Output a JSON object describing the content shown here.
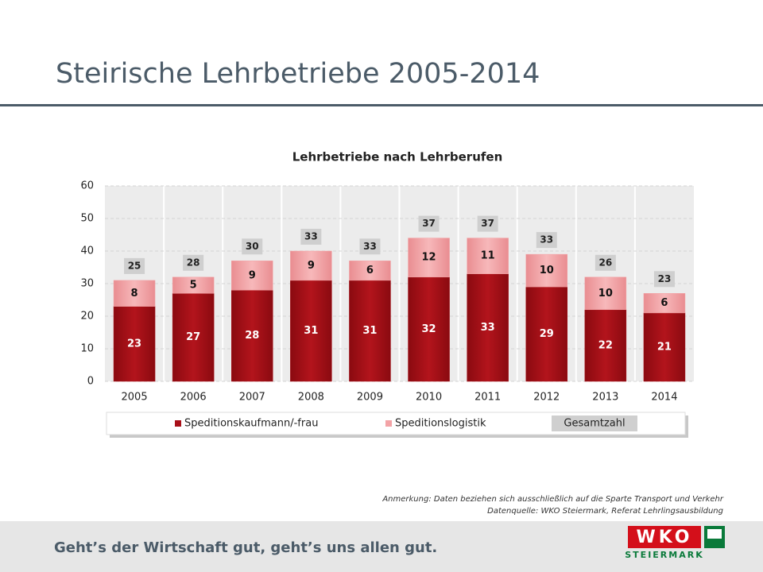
{
  "header": {
    "title": "Steirische Lehrbetriebe 2005-2014"
  },
  "chart_data": {
    "type": "stacked-bar",
    "title": "Lehrbetriebe nach Lehrberufen",
    "categories": [
      "2005",
      "2006",
      "2007",
      "2008",
      "2009",
      "2010",
      "2011",
      "2012",
      "2013",
      "2014"
    ],
    "series": [
      {
        "name": "Speditionskaufmann/-frau",
        "color": "#a80f18",
        "values": [
          23,
          27,
          28,
          31,
          31,
          32,
          33,
          29,
          22,
          21
        ]
      },
      {
        "name": "Speditionslogistik",
        "color": "#f3a3a6",
        "values": [
          8,
          5,
          9,
          9,
          6,
          12,
          11,
          10,
          10,
          6
        ]
      }
    ],
    "totals": {
      "name": "Gesamtzahl",
      "color": "#cfcfcf",
      "values": [
        25,
        28,
        30,
        33,
        33,
        37,
        37,
        33,
        26,
        23
      ]
    },
    "ylim": [
      0,
      60
    ],
    "yticks": [
      0,
      10,
      20,
      30,
      40,
      50,
      60
    ],
    "grid": true,
    "legend": "bottom"
  },
  "notes": [
    "Anmerkung: Daten beziehen sich ausschließlich auf die Sparte Transport und Verkehr",
    "Datenquelle: WKO Steiermark, Referat Lehrlingsausbildung"
  ],
  "footer": {
    "slogan": "Geht’s der Wirtschaft gut, geht’s uns allen gut.",
    "brand": "WKO",
    "region": "STEIERMARK"
  }
}
